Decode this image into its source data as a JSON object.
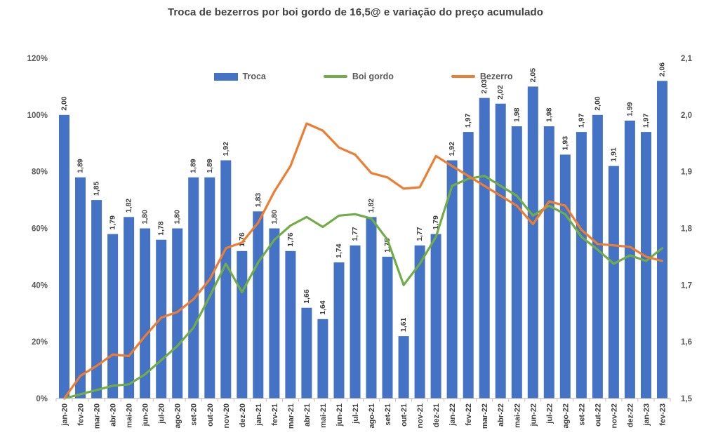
{
  "title": "Troca de bezerros por boi gordo de 16,5@ e variação do preço acumulado",
  "legend": [
    {
      "label": "Troca",
      "type": "bar",
      "color": "#4472C4"
    },
    {
      "label": "Boi gordo",
      "type": "line",
      "color": "#70AD47"
    },
    {
      "label": "Bezerro",
      "type": "line",
      "color": "#ED7D31"
    }
  ],
  "chart_data": {
    "type": "bar",
    "subtype": "combo-bar-line",
    "title": "Troca de bezerros por boi gordo de 16,5@ e variação do preço acumulado",
    "grid": false,
    "legend_position": "top",
    "categories": [
      "jan-20",
      "fev-20",
      "mar-20",
      "abr-20",
      "mai-20",
      "jun-20",
      "jul-20",
      "ago-20",
      "set-20",
      "out-20",
      "nov-20",
      "dez-20",
      "jan-21",
      "fev-21",
      "mar-21",
      "abr-21",
      "mai-21",
      "jun-21",
      "jul-21",
      "ago-21",
      "set-21",
      "out-21",
      "nov-21",
      "dez-21",
      "jan-22",
      "fev-22",
      "mar-22",
      "abr-22",
      "mai-22",
      "jun-22",
      "jul-22",
      "ago-22",
      "set-22",
      "out-22",
      "nov-22",
      "dez-22",
      "jan-23",
      "fev-23"
    ],
    "series": [
      {
        "name": "Troca",
        "type": "bar",
        "axis": "right",
        "color": "#4472C4",
        "values": [
          2.0,
          1.89,
          1.85,
          1.79,
          1.82,
          1.8,
          1.78,
          1.8,
          1.89,
          1.89,
          1.92,
          1.76,
          1.83,
          1.8,
          1.76,
          1.66,
          1.64,
          1.74,
          1.77,
          1.82,
          1.75,
          1.61,
          1.77,
          1.79,
          1.92,
          1.97,
          2.03,
          2.02,
          1.98,
          2.05,
          1.98,
          1.93,
          1.97,
          2.0,
          1.91,
          1.99,
          1.97,
          2.06
        ],
        "labels": [
          "2,00",
          "1,89",
          "1,85",
          "1,79",
          "1,82",
          "1,80",
          "1,78",
          "1,80",
          "1,89",
          "1,89",
          "1,92",
          "1,76",
          "1,83",
          "1,80",
          "1,76",
          "1,66",
          "1,64",
          "1,74",
          "1,77",
          "1,82",
          "1,75",
          "1,61",
          "1,77",
          "1,79",
          "1,92",
          "1,97",
          "2,03",
          "2,02",
          "1,98",
          "2,05",
          "1,98",
          "1,93",
          "1,97",
          "2,00",
          "1,91",
          "1,99",
          "1,97",
          "2,06"
        ]
      },
      {
        "name": "Boi gordo",
        "type": "line",
        "axis": "left",
        "color": "#70AD47",
        "values_pct": [
          0,
          1.5,
          3,
          4.5,
          5,
          8.5,
          13.5,
          18.5,
          25,
          36,
          47.5,
          37.5,
          48,
          56,
          61,
          64,
          60.5,
          64.5,
          65,
          63.5,
          56,
          40,
          47.5,
          57,
          75,
          77.5,
          78.5,
          75,
          71.5,
          64.5,
          68,
          65,
          57,
          52.5,
          47.5,
          50.5,
          48.5,
          53
        ]
      },
      {
        "name": "Bezerro",
        "type": "line",
        "axis": "left",
        "color": "#ED7D31",
        "values_pct": [
          0,
          8,
          11.5,
          15.5,
          15,
          22,
          28.5,
          30.5,
          35,
          42,
          53,
          55,
          62,
          73,
          82,
          97,
          94.5,
          88.5,
          86,
          79.5,
          78,
          74,
          74.5,
          85.5,
          82,
          78.5,
          75,
          71.5,
          68,
          61.5,
          69.5,
          68,
          59.5,
          54.5,
          54,
          53.5,
          50,
          48.5
        ]
      }
    ],
    "left_axis": {
      "min": 0,
      "max": 120,
      "ticks": [
        "0%",
        "20%",
        "40%",
        "60%",
        "80%",
        "100%",
        "120%"
      ]
    },
    "right_axis": {
      "min": 1.5,
      "max": 2.1,
      "ticks": [
        "1,5",
        "1,6",
        "1,7",
        "1,8",
        "1,9",
        "2,0",
        "2,1"
      ]
    }
  }
}
